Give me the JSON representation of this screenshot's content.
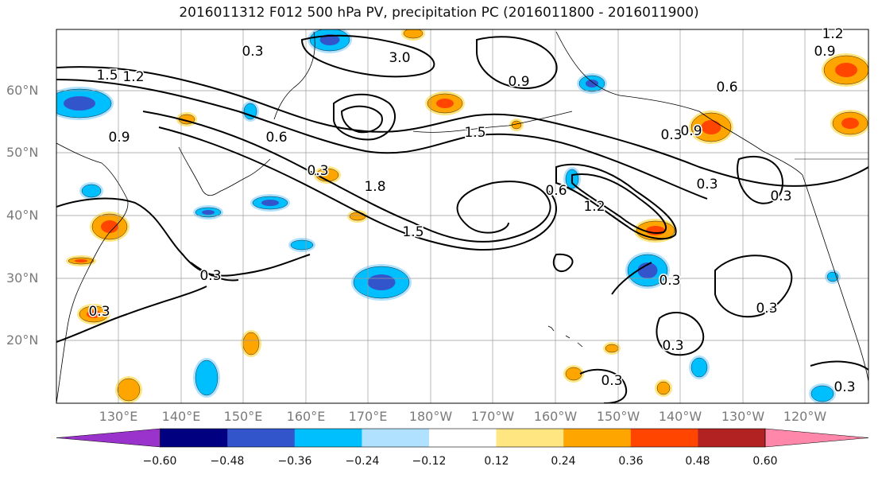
{
  "title": "2016011312 F012 500 hPa PV, precipitation PC (2016011800 - 2016011900)",
  "lat_labels": [
    "60°N",
    "50°N",
    "40°N",
    "30°N",
    "20°N"
  ],
  "lon_labels": [
    "130°E",
    "140°E",
    "150°E",
    "160°E",
    "170°E",
    "180°W",
    "170°W",
    "160°W",
    "150°W",
    "140°W",
    "130°W",
    "120°W"
  ],
  "contour_labels": [
    "0.3",
    "3.0",
    "1.5",
    "1.2",
    "0.9",
    "0.6",
    "0.3",
    "1.5",
    "1.8",
    "1.5",
    "1.2",
    "0.6",
    "0.3",
    "0.9",
    "0.3",
    "0.3",
    "0.3",
    "0.3",
    "0.3",
    "0.3",
    "0.3",
    "0.3",
    "0.3",
    "1.2",
    "0.9",
    "0.6",
    "0.9"
  ],
  "colorbar": {
    "labels": [
      "−0.60",
      "−0.48",
      "−0.36",
      "−0.24",
      "−0.12",
      "0.12",
      "0.24",
      "0.36",
      "0.48",
      "0.60"
    ],
    "colors": [
      "#9933cc",
      "#000080",
      "#3355cc",
      "#00bfff",
      "#b0e2ff",
      "#ffffff",
      "#ffe680",
      "#ffa500",
      "#ff4500",
      "#b22222",
      "#ff88aa"
    ],
    "min_extend_color": "#9933cc",
    "max_extend_color": "#ff88aa"
  },
  "colors": {
    "contour": "#000000",
    "grid": "#9a9a9a",
    "coast": "#000000",
    "negative_fill": "#00bfff",
    "positive_fill": "#ffa500"
  }
}
